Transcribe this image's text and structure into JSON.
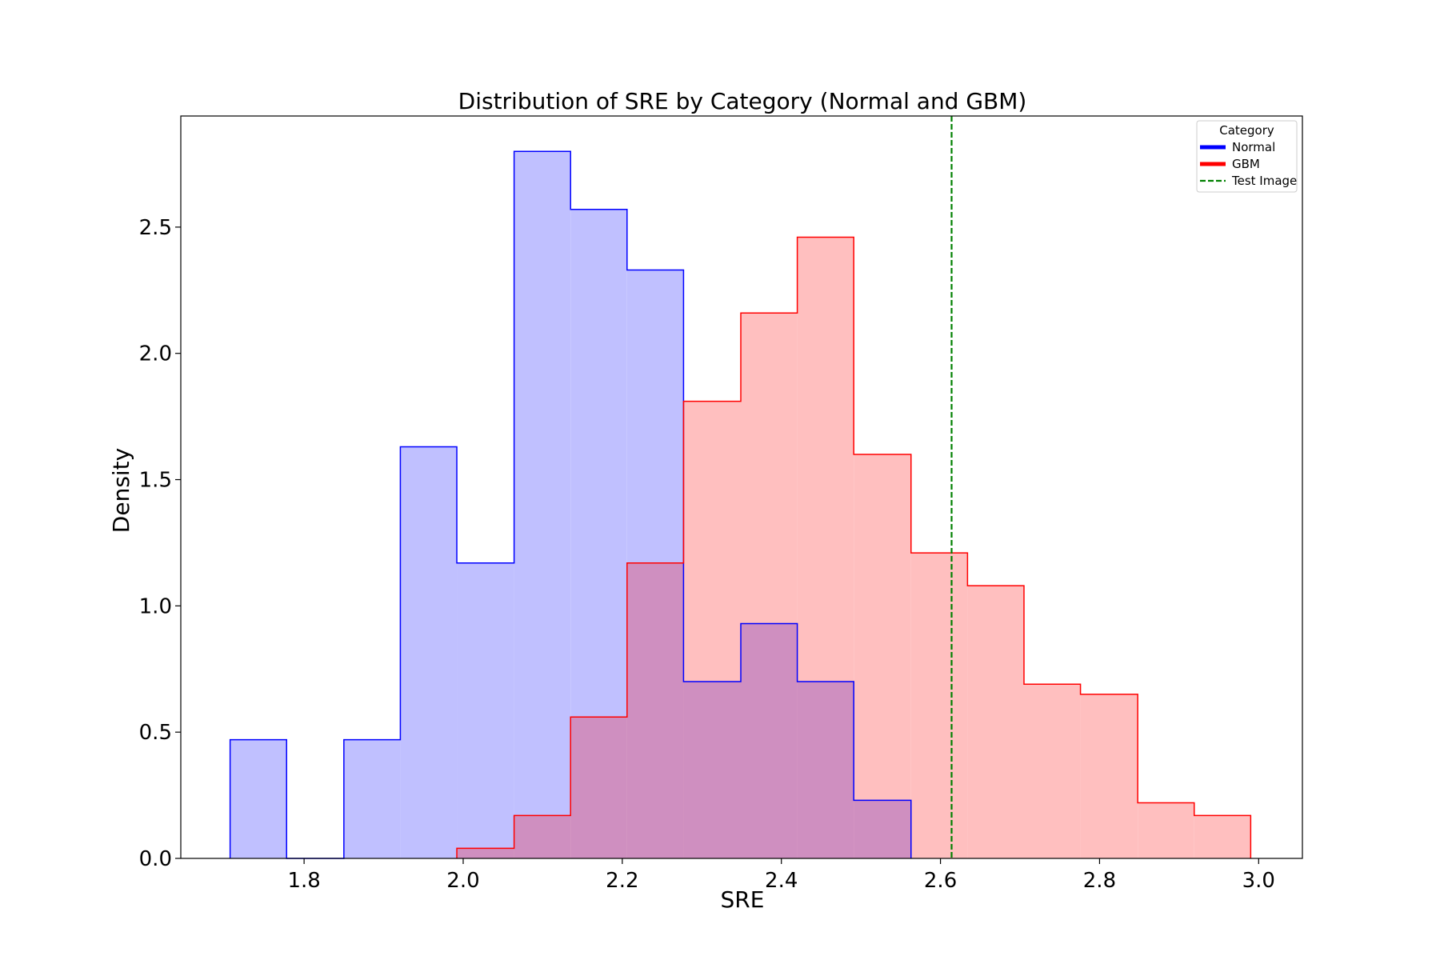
{
  "chart_data": {
    "type": "histogram",
    "title": "Distribution of SRE by Category (Normal and GBM)",
    "xlabel": "SRE",
    "ylabel": "Density",
    "xlim": [
      1.645,
      3.055
    ],
    "ylim": [
      0,
      2.94
    ],
    "xticks": [
      1.8,
      2.0,
      2.2,
      2.4,
      2.6,
      2.8,
      3.0
    ],
    "xtick_labels": [
      "1.8",
      "2.0",
      "2.2",
      "2.4",
      "2.6",
      "2.8",
      "3.0"
    ],
    "yticks": [
      0.0,
      0.5,
      1.0,
      1.5,
      2.0,
      2.5
    ],
    "ytick_labels": [
      "0.0",
      "0.5",
      "1.0",
      "1.5",
      "2.0",
      "2.5"
    ],
    "grid": false,
    "legend": {
      "title": "Category",
      "position": "top-right",
      "entries": [
        {
          "label": "Normal",
          "style": "solid-line",
          "color": "#0000ff"
        },
        {
          "label": "GBM",
          "style": "solid-line",
          "color": "#ff0000"
        },
        {
          "label": "Test Image",
          "style": "dashed-line",
          "color": "#008000"
        }
      ]
    },
    "series": [
      {
        "name": "Normal",
        "color": "#0000ff",
        "fill_color": "#c0c0ff",
        "bin_edges": [
          1.707,
          1.778,
          1.85,
          1.921,
          1.992,
          2.064,
          2.135,
          2.206,
          2.277,
          2.349,
          2.42,
          2.491,
          2.563
        ],
        "densities": [
          0.47,
          0.0,
          0.47,
          1.63,
          1.17,
          2.8,
          2.57,
          2.33,
          0.7,
          0.93,
          0.7,
          0.23
        ]
      },
      {
        "name": "GBM",
        "color": "#ff0000",
        "fill_color": "#ffbfbf",
        "bin_edges": [
          1.992,
          2.064,
          2.135,
          2.206,
          2.277,
          2.349,
          2.42,
          2.491,
          2.563,
          2.634,
          2.705,
          2.776,
          2.848,
          2.919,
          2.99
        ],
        "densities": [
          0.04,
          0.17,
          0.56,
          1.17,
          1.81,
          2.16,
          2.46,
          1.6,
          1.21,
          1.08,
          0.69,
          0.65,
          0.22,
          0.17
        ]
      }
    ],
    "overlap_fill_color": "#cf8fc0",
    "reference_lines": [
      {
        "name": "Test Image",
        "axis": "x",
        "value": 2.614,
        "color": "#008000",
        "style": "dashed"
      }
    ]
  }
}
